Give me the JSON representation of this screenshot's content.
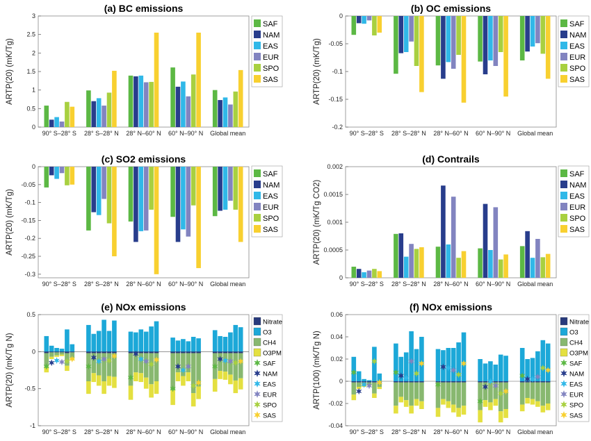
{
  "colors": {
    "SAF": "#5cb844",
    "NAM": "#283d8c",
    "EAS": "#30b8e8",
    "EUR": "#8284c0",
    "SPO": "#a8d040",
    "SAS": "#f8d030",
    "Nitrate": "#283a7c",
    "O3": "#1ca8d8",
    "CH4": "#88b870",
    "O3PM": "#e4e040"
  },
  "chart_data": [
    {
      "id": "a",
      "type": "bar",
      "title": "(a) BC emissions",
      "ylabel": "ARTP(20) (mK/Tg)",
      "ylim": [
        0,
        3
      ],
      "yticks": [
        "0",
        "0.5",
        "1",
        "1.5",
        "2",
        "2.5",
        "3"
      ],
      "ytick_values": [
        0,
        0.5,
        1,
        1.5,
        2,
        2.5,
        3
      ],
      "categories": [
        "90° S–28° S",
        "28° S–28° N",
        "28° N–60° N",
        "60° N–90° N",
        "Global mean"
      ],
      "series": [
        {
          "name": "SAF",
          "values": [
            0.58,
            0.99,
            1.39,
            1.61,
            1.0
          ]
        },
        {
          "name": "NAM",
          "values": [
            0.2,
            0.7,
            1.37,
            1.09,
            0.73
          ]
        },
        {
          "name": "EAS",
          "values": [
            0.27,
            0.78,
            1.39,
            1.23,
            0.8
          ]
        },
        {
          "name": "EUR",
          "values": [
            0.15,
            0.58,
            1.21,
            0.83,
            0.61
          ]
        },
        {
          "name": "SPO",
          "values": [
            0.68,
            0.93,
            1.22,
            1.42,
            0.96
          ]
        },
        {
          "name": "SAS",
          "values": [
            0.55,
            1.52,
            2.55,
            2.55,
            1.54
          ]
        }
      ]
    },
    {
      "id": "b",
      "type": "bar",
      "title": "(b) OC emissions",
      "ylabel": "ARTP(20) (mK/Tg)",
      "ylim": [
        -0.2,
        0
      ],
      "yticks": [
        "0",
        "-0.05",
        "-0.1",
        "-0.15",
        "-0.2"
      ],
      "ytick_values": [
        0,
        -0.05,
        -0.1,
        -0.15,
        -0.2
      ],
      "categories": [
        "90° S–28° S",
        "28° S–28° N",
        "28° N–60° N",
        "60° N–90° N",
        "Global mean"
      ],
      "series": [
        {
          "name": "SAF",
          "values": [
            -0.034,
            -0.104,
            -0.089,
            -0.082,
            -0.08
          ]
        },
        {
          "name": "NAM",
          "values": [
            -0.013,
            -0.067,
            -0.113,
            -0.105,
            -0.064
          ]
        },
        {
          "name": "EAS",
          "values": [
            -0.014,
            -0.065,
            -0.083,
            -0.08,
            -0.055
          ]
        },
        {
          "name": "EUR",
          "values": [
            -0.008,
            -0.046,
            -0.095,
            -0.09,
            -0.049
          ]
        },
        {
          "name": "SPO",
          "values": [
            -0.035,
            -0.09,
            -0.07,
            -0.065,
            -0.068
          ]
        },
        {
          "name": "SAS",
          "values": [
            -0.03,
            -0.137,
            -0.156,
            -0.145,
            -0.113
          ]
        }
      ]
    },
    {
      "id": "c",
      "type": "bar",
      "title": "(c) SO2 emissions",
      "ylabel": "ARTP(20) (mK/Tg)",
      "ylim": [
        -0.31,
        0
      ],
      "yticks": [
        "0",
        "-0.05",
        "-0.1",
        "-0.15",
        "-0.2",
        "-0.25",
        "-0.3"
      ],
      "ytick_values": [
        0,
        -0.05,
        -0.1,
        -0.15,
        -0.2,
        -0.25,
        -0.3
      ],
      "categories": [
        "90° S–28° S",
        "28° S–28° N",
        "28° N–60° N",
        "60° N–90° N",
        "Global mean"
      ],
      "series": [
        {
          "name": "SAF",
          "values": [
            -0.058,
            -0.178,
            -0.153,
            -0.14,
            -0.138
          ]
        },
        {
          "name": "NAM",
          "values": [
            -0.024,
            -0.127,
            -0.21,
            -0.21,
            -0.123
          ]
        },
        {
          "name": "EAS",
          "values": [
            -0.034,
            -0.135,
            -0.18,
            -0.175,
            -0.12
          ]
        },
        {
          "name": "EUR",
          "values": [
            -0.018,
            -0.09,
            -0.178,
            -0.195,
            -0.095
          ]
        },
        {
          "name": "SPO",
          "values": [
            -0.052,
            -0.158,
            -0.12,
            -0.108,
            -0.12
          ]
        },
        {
          "name": "SAS",
          "values": [
            -0.05,
            -0.25,
            -0.3,
            -0.283,
            -0.21
          ]
        }
      ]
    },
    {
      "id": "d",
      "type": "bar",
      "title": "(d) Contrails",
      "ylabel": "ARTP(20) (mK/Tg CO2)",
      "ylim": [
        0,
        0.002
      ],
      "yticks": [
        "0",
        "0.0005",
        "0.001",
        "0.0015",
        "0.002"
      ],
      "ytick_values": [
        0,
        0.0005,
        0.001,
        0.0015,
        0.002
      ],
      "categories": [
        "90° S–28° S",
        "28° S–28° N",
        "28° N–60° N",
        "60° N–90° N",
        "Global mean"
      ],
      "series": [
        {
          "name": "SAF",
          "values": [
            0.0002,
            0.00079,
            0.00056,
            0.00053,
            0.00057
          ]
        },
        {
          "name": "NAM",
          "values": [
            0.00016,
            0.0008,
            0.00166,
            0.00133,
            0.00084
          ]
        },
        {
          "name": "EAS",
          "values": [
            0.0001,
            0.00038,
            0.0006,
            0.0005,
            0.00036
          ]
        },
        {
          "name": "EUR",
          "values": [
            0.00013,
            0.00061,
            0.00146,
            0.00127,
            0.0007
          ]
        },
        {
          "name": "SPO",
          "values": [
            0.00016,
            0.00052,
            0.00036,
            0.00033,
            0.00037
          ]
        },
        {
          "name": "SAS",
          "values": [
            0.00012,
            0.00055,
            0.00048,
            0.00042,
            0.00043
          ]
        }
      ]
    },
    {
      "id": "e",
      "type": "bar",
      "title": "(e) NOx emissions",
      "ylabel": "ARTP(20) (mK/Tg N)",
      "ylim": [
        -1,
        0.5
      ],
      "yticks": [
        "0.5",
        "0",
        "-0.5",
        "-1"
      ],
      "ytick_values": [
        0.5,
        0,
        -0.5,
        -1
      ],
      "categories": [
        "90° S–28° S",
        "28° S–28° N",
        "28° N–60° N",
        "60° N–90° N",
        "Global mean"
      ],
      "components": [
        "Nitrate",
        "O3",
        "CH4",
        "O3PM"
      ],
      "regions": [
        "SAF",
        "NAM",
        "EAS",
        "EUR",
        "SPO",
        "SAS"
      ],
      "O3": [
        [
          0.21,
          0.08,
          0.05,
          0.04,
          0.3,
          0.1
        ],
        [
          0.36,
          0.24,
          0.28,
          0.43,
          0.28,
          0.42
        ],
        [
          0.27,
          0.26,
          0.3,
          0.27,
          0.34,
          0.41
        ],
        [
          0.19,
          0.15,
          0.17,
          0.14,
          0.2,
          0.18
        ],
        [
          0.29,
          0.21,
          0.2,
          0.26,
          0.36,
          0.33
        ]
      ],
      "CH4": [
        [
          -0.18,
          -0.06,
          -0.04,
          -0.03,
          -0.17,
          -0.07
        ],
        [
          -0.38,
          -0.27,
          -0.3,
          -0.38,
          -0.31,
          -0.32
        ],
        [
          -0.44,
          -0.26,
          -0.27,
          -0.33,
          -0.42,
          -0.38
        ],
        [
          -0.5,
          -0.26,
          -0.31,
          -0.26,
          -0.54,
          -0.45
        ],
        [
          -0.35,
          -0.24,
          -0.25,
          -0.29,
          -0.37,
          -0.34
        ]
      ],
      "O3PM": [
        [
          -0.08,
          -0.03,
          -0.02,
          -0.02,
          -0.07,
          -0.03
        ],
        [
          -0.17,
          -0.12,
          -0.14,
          -0.17,
          -0.13,
          -0.15
        ],
        [
          -0.19,
          -0.12,
          -0.12,
          -0.15,
          -0.18,
          -0.17
        ],
        [
          -0.2,
          -0.12,
          -0.13,
          -0.12,
          -0.18,
          -0.17
        ],
        [
          -0.17,
          -0.11,
          -0.11,
          -0.13,
          -0.17,
          -0.15
        ]
      ],
      "Nitrate": [
        [
          -0.02,
          -0.01,
          -0.01,
          -0.01,
          -0.02,
          -0.01
        ],
        [
          -0.02,
          -0.02,
          -0.02,
          -0.02,
          -0.02,
          -0.02
        ],
        [
          -0.02,
          -0.02,
          -0.02,
          -0.02,
          -0.02,
          -0.02
        ],
        [
          -0.02,
          -0.02,
          -0.02,
          -0.02,
          -0.02,
          -0.02
        ],
        [
          -0.02,
          -0.02,
          -0.02,
          -0.02,
          -0.02,
          -0.02
        ]
      ],
      "net": [
        [
          -0.2,
          -0.15,
          -0.12,
          -0.14,
          -0.13,
          -0.1
        ],
        [
          -0.2,
          -0.08,
          -0.13,
          -0.1,
          -0.12,
          -0.06
        ],
        [
          -0.35,
          -0.03,
          -0.1,
          -0.13,
          -0.17,
          -0.11
        ],
        [
          -0.5,
          -0.2,
          -0.25,
          -0.2,
          -0.46,
          -0.42
        ],
        [
          -0.2,
          -0.1,
          -0.12,
          -0.13,
          -0.15,
          -0.13
        ]
      ]
    },
    {
      "id": "f",
      "type": "bar",
      "title": "(f) NOx emissions",
      "ylabel": "ARTP(100) (mK/Tg N)",
      "ylim": [
        -0.04,
        0.06
      ],
      "yticks": [
        "0.06",
        "0.04",
        "0.02",
        "0",
        "-0.02",
        "-0.04"
      ],
      "ytick_values": [
        0.06,
        0.04,
        0.02,
        0,
        -0.02,
        -0.04
      ],
      "categories": [
        "90° S–28° S",
        "28° S–28° N",
        "28° N–60° N",
        "60° N–90° N",
        "Global mean"
      ],
      "components": [
        "Nitrate",
        "O3",
        "CH4",
        "O3PM"
      ],
      "regions": [
        "SAF",
        "NAM",
        "EAS",
        "EUR",
        "SPO",
        "SAS"
      ],
      "O3": [
        [
          0.022,
          0.009,
          0.002,
          0.001,
          0.031,
          0.007
        ],
        [
          0.034,
          0.022,
          0.026,
          0.045,
          0.029,
          0.04
        ],
        [
          0.029,
          0.028,
          0.03,
          0.03,
          0.035,
          0.044
        ],
        [
          0.02,
          0.016,
          0.018,
          0.015,
          0.024,
          0.023
        ],
        [
          0.03,
          0.02,
          0.021,
          0.027,
          0.037,
          0.034
        ]
      ],
      "CH4": [
        [
          -0.011,
          -0.004,
          -0.003,
          -0.002,
          -0.01,
          -0.004
        ],
        [
          -0.021,
          -0.013,
          -0.016,
          -0.021,
          -0.015,
          -0.017
        ],
        [
          -0.023,
          -0.015,
          -0.017,
          -0.02,
          -0.023,
          -0.021
        ],
        [
          -0.025,
          -0.016,
          -0.018,
          -0.015,
          -0.026,
          -0.024
        ],
        [
          -0.02,
          -0.014,
          -0.015,
          -0.017,
          -0.021,
          -0.019
        ]
      ],
      "O3PM": [
        [
          -0.005,
          -0.002,
          -0.001,
          -0.001,
          -0.004,
          -0.002
        ],
        [
          -0.007,
          -0.005,
          -0.006,
          -0.007,
          -0.006,
          -0.007
        ],
        [
          -0.008,
          -0.005,
          -0.006,
          -0.007,
          -0.008,
          -0.008
        ],
        [
          -0.011,
          -0.006,
          -0.007,
          -0.006,
          -0.01,
          -0.008
        ],
        [
          -0.006,
          -0.005,
          -0.005,
          -0.005,
          -0.006,
          -0.006
        ]
      ],
      "Nitrate": [
        [
          -0.001,
          -0.001,
          -0.001,
          -0.001,
          -0.001,
          -0.001
        ],
        [
          -0.001,
          -0.001,
          -0.001,
          -0.001,
          -0.001,
          -0.001
        ],
        [
          -0.001,
          -0.001,
          -0.001,
          -0.001,
          -0.001,
          -0.001
        ],
        [
          -0.001,
          -0.001,
          -0.001,
          -0.001,
          -0.001,
          -0.001
        ],
        [
          -0.001,
          -0.001,
          -0.001,
          -0.001,
          -0.001,
          -0.001
        ]
      ],
      "net": [
        [
          0.008,
          -0.009,
          -0.003,
          -0.004,
          0.018,
          -0.001
        ],
        [
          0.008,
          0.005,
          0.003,
          0.018,
          0.007,
          0.016
        ],
        [
          -0.003,
          0.013,
          0.012,
          0.01,
          0.006,
          0.016
        ],
        [
          -0.018,
          -0.005,
          0.0,
          -0.004,
          -0.011,
          -0.009
        ],
        [
          0.005,
          0.002,
          0.002,
          0.004,
          0.012,
          0.01
        ]
      ]
    }
  ],
  "legend_bc": [
    "SAF",
    "NAM",
    "EAS",
    "EUR",
    "SPO",
    "SAS"
  ],
  "legend_nox": [
    {
      "label": "Nitrate",
      "kind": "box",
      "color": "Nitrate"
    },
    {
      "label": "O3",
      "kind": "box",
      "color": "O3"
    },
    {
      "label": "CH4",
      "kind": "box",
      "color": "CH4"
    },
    {
      "label": "O3PM",
      "kind": "box",
      "color": "O3PM"
    },
    {
      "label": "SAF",
      "kind": "star",
      "color": "SAF"
    },
    {
      "label": "NAM",
      "kind": "star",
      "color": "NAM"
    },
    {
      "label": "EAS",
      "kind": "star",
      "color": "EAS"
    },
    {
      "label": "EUR",
      "kind": "star",
      "color": "EUR"
    },
    {
      "label": "SPO",
      "kind": "star",
      "color": "SPO"
    },
    {
      "label": "SAS",
      "kind": "star",
      "color": "SAS"
    }
  ]
}
